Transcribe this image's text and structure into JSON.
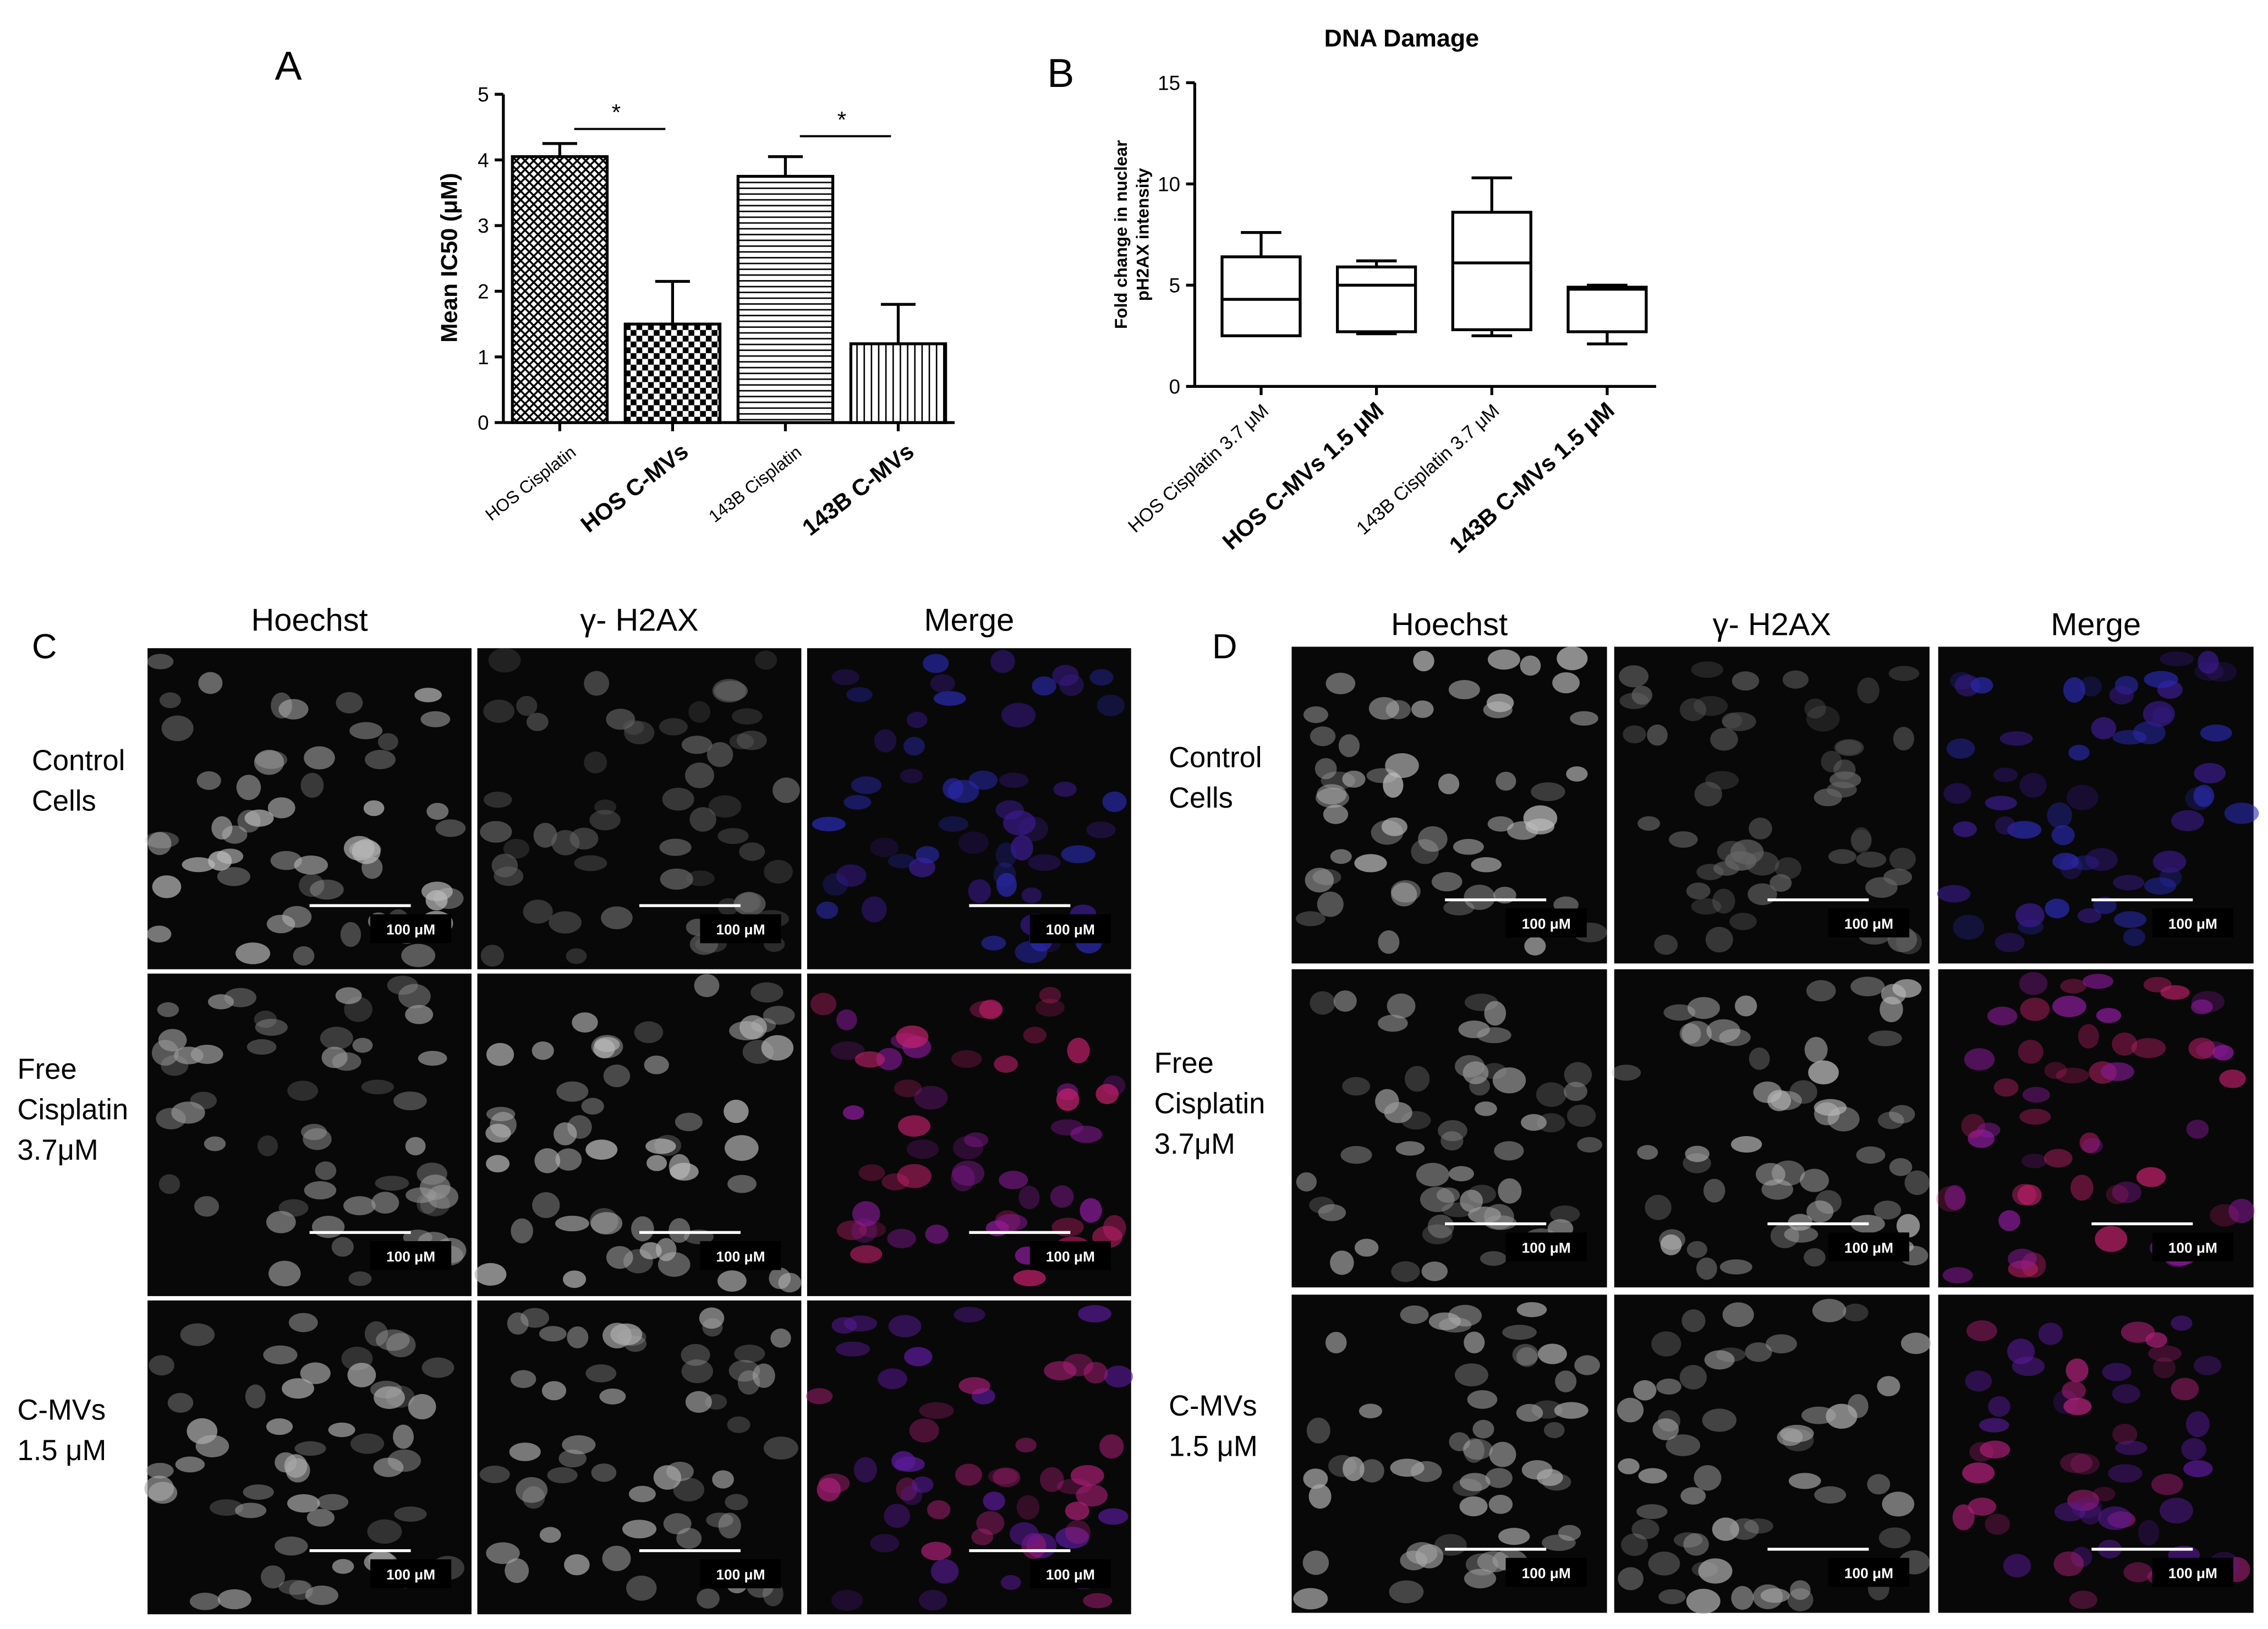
{
  "chart_data": [
    {
      "type": "bar",
      "panel_label": "A",
      "ylabel": "Mean IC50  (μM)",
      "categories": [
        "HOS Cisplatin",
        "HOS C-MVs",
        "143B Cisplatin",
        "143B C-MVs"
      ],
      "category_bold": [
        false,
        true,
        false,
        true
      ],
      "values": [
        4.05,
        1.5,
        3.75,
        1.2
      ],
      "errors": [
        0.2,
        0.65,
        0.3,
        0.6
      ],
      "annotations": [
        "*",
        "*"
      ],
      "ylim": [
        0,
        5
      ],
      "yticks": [
        0,
        1,
        2,
        3,
        4,
        5
      ]
    },
    {
      "type": "box",
      "panel_label": "B",
      "title": "DNA Damage",
      "ylabel": [
        "Fold change in nuclear",
        "pH2AX intensity"
      ],
      "categories": [
        "HOS Cisplatin 3.7 μM",
        "HOS C-MVs 1.5 μM",
        "143B Cisplatin 3.7 μM",
        "143B C-MVs 1.5 μM"
      ],
      "category_bold": [
        false,
        true,
        false,
        true
      ],
      "min": [
        2.5,
        2.6,
        2.5,
        2.1
      ],
      "q1": [
        2.5,
        2.7,
        2.8,
        2.7
      ],
      "median": [
        4.3,
        5.0,
        6.1,
        4.8
      ],
      "q3": [
        6.4,
        5.9,
        8.6,
        4.9
      ],
      "max": [
        7.6,
        6.2,
        10.3,
        5.0
      ],
      "ylim": [
        0,
        15
      ],
      "yticks": [
        0,
        5,
        10,
        15
      ]
    }
  ],
  "panels": [
    {
      "label": "C",
      "columns": [
        "Hoechst",
        "γ- H2AX",
        "Merge"
      ],
      "rows": [
        [
          "Control",
          "Cells"
        ],
        [
          "Free",
          "Cisplatin",
          "3.7μM"
        ],
        [
          "C-MVs",
          "1.5 μM"
        ]
      ],
      "scale_label": "100 μM"
    },
    {
      "label": "D",
      "columns": [
        "Hoechst",
        "γ- H2AX",
        "Merge"
      ],
      "rows": [
        [
          "Control",
          "Cells"
        ],
        [
          "Free",
          "Cisplatin",
          "3.7μM"
        ],
        [
          "C-MVs",
          "1.5 μM"
        ]
      ],
      "scale_label": "100 μM"
    }
  ]
}
